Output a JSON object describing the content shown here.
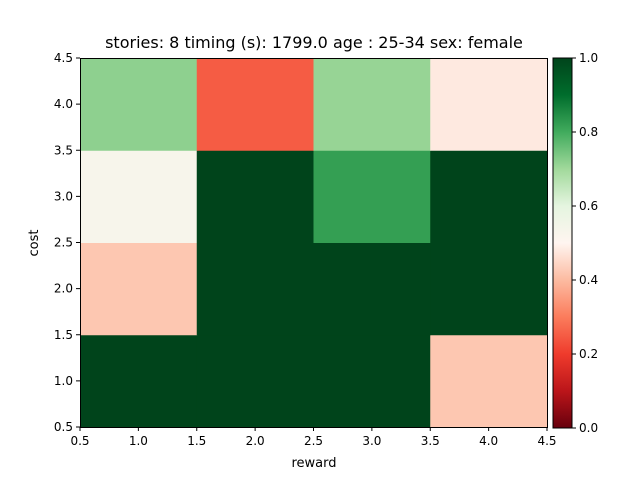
{
  "chart_data": {
    "type": "heatmap",
    "title": "stories: 8 timing (s): 1799.0 age : 25-34 sex: female",
    "xlabel": "reward",
    "ylabel": "cost",
    "xlim": [
      0.5,
      4.5
    ],
    "ylim": [
      0.5,
      4.5
    ],
    "xticks": [
      "0.5",
      "1.0",
      "1.5",
      "2.0",
      "2.5",
      "3.0",
      "3.5",
      "4.0",
      "4.5"
    ],
    "yticks": [
      "0.5",
      "1.0",
      "1.5",
      "2.0",
      "2.5",
      "3.0",
      "3.5",
      "4.0",
      "4.5"
    ],
    "x": [
      1,
      2,
      3,
      4
    ],
    "y": [
      1,
      2,
      3,
      4
    ],
    "values": [
      [
        1.0,
        1.0,
        1.0,
        0.42
      ],
      [
        0.42,
        1.0,
        1.0,
        1.0
      ],
      [
        0.53,
        1.0,
        0.82,
        1.0
      ],
      [
        0.72,
        0.25,
        0.71,
        0.48
      ]
    ],
    "colormap": "RdGn",
    "vmin": 0.0,
    "vmax": 1.0,
    "colorbar_ticks": [
      "0.0",
      "0.2",
      "0.4",
      "0.6",
      "0.8",
      "1.0"
    ],
    "grid": false
  }
}
